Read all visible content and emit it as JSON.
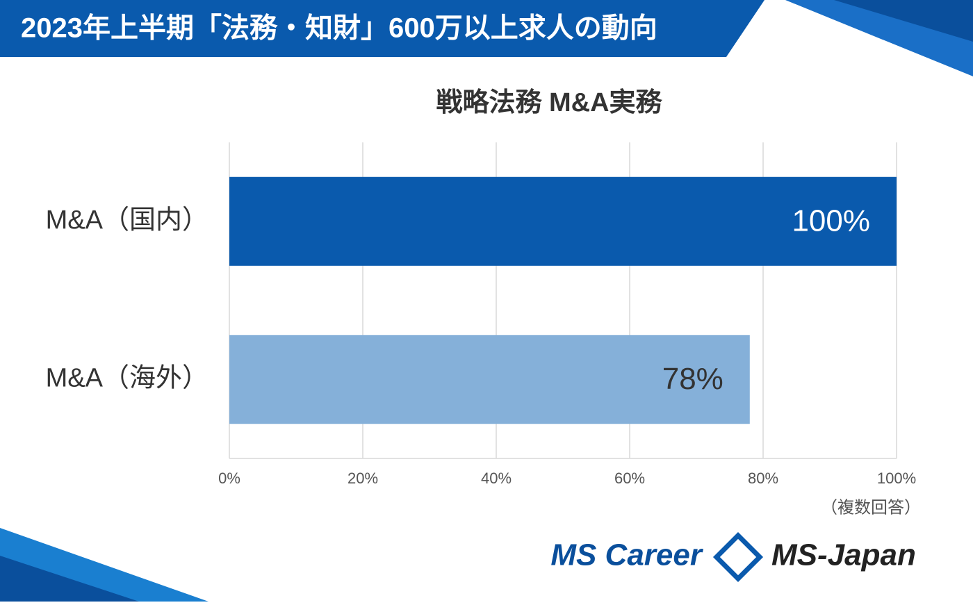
{
  "header": {
    "title": "2023年上半期「法務・知財」600万以上求人の動向"
  },
  "chart_data": {
    "type": "bar",
    "orientation": "horizontal",
    "title": "戦略法務 M&A実務",
    "categories": [
      "M&A（国内）",
      "M&A（海外）"
    ],
    "values": [
      100,
      78
    ],
    "value_labels": [
      "100%",
      "78%"
    ],
    "colors": [
      "#0a5aad",
      "#85b0d9"
    ],
    "xlim": [
      0,
      100
    ],
    "xticks": [
      {
        "value": 0,
        "label": "0%"
      },
      {
        "value": 20,
        "label": "20%"
      },
      {
        "value": 40,
        "label": "40%"
      },
      {
        "value": 60,
        "label": "60%"
      },
      {
        "value": 80,
        "label": "80%"
      },
      {
        "value": 100,
        "label": "100%"
      }
    ],
    "grid": true,
    "note": "（複数回答）"
  },
  "footer": {
    "logo_left": "MS Career",
    "logo_right": "MS-Japan"
  }
}
